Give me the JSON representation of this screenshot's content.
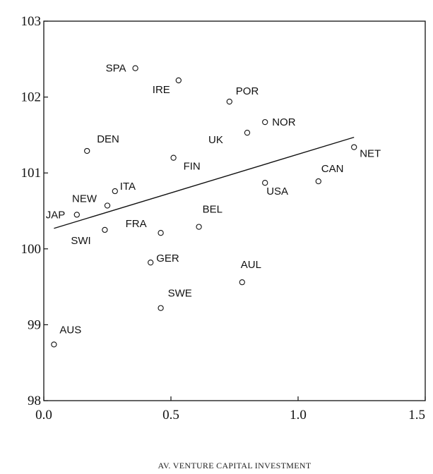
{
  "chart_data": {
    "type": "scatter",
    "title": "",
    "xlabel": "AV. VENTURE CAPITAL INVESTMENT",
    "ylabel": "",
    "xlim": [
      0.0,
      1.5
    ],
    "ylim": [
      98,
      103
    ],
    "xticks": [
      "0.0",
      "0.5",
      "1.0",
      "1.5"
    ],
    "yticks": [
      "98",
      "99",
      "100",
      "101",
      "102",
      "103"
    ],
    "grid": false,
    "points": [
      {
        "label": "SPA",
        "x": 0.36,
        "y": 102.38
      },
      {
        "label": "IRE",
        "x": 0.53,
        "y": 102.22
      },
      {
        "label": "POR",
        "x": 0.73,
        "y": 101.94
      },
      {
        "label": "NOR",
        "x": 0.87,
        "y": 101.67
      },
      {
        "label": "UK",
        "x": 0.8,
        "y": 101.53
      },
      {
        "label": "DEN",
        "x": 0.17,
        "y": 101.29
      },
      {
        "label": "NET",
        "x": 1.22,
        "y": 101.34
      },
      {
        "label": "FIN",
        "x": 0.51,
        "y": 101.2
      },
      {
        "label": "CAN",
        "x": 1.08,
        "y": 100.89
      },
      {
        "label": "USA",
        "x": 0.87,
        "y": 100.87
      },
      {
        "label": "ITA",
        "x": 0.28,
        "y": 100.76
      },
      {
        "label": "NEW",
        "x": 0.25,
        "y": 100.57
      },
      {
        "label": "JAP",
        "x": 0.13,
        "y": 100.45
      },
      {
        "label": "BEL",
        "x": 0.61,
        "y": 100.29
      },
      {
        "label": "SWI",
        "x": 0.24,
        "y": 100.25
      },
      {
        "label": "FRA",
        "x": 0.46,
        "y": 100.21
      },
      {
        "label": "GER",
        "x": 0.42,
        "y": 99.82
      },
      {
        "label": "AUL",
        "x": 0.78,
        "y": 99.56
      },
      {
        "label": "SWE",
        "x": 0.46,
        "y": 99.22
      },
      {
        "label": "AUS",
        "x": 0.04,
        "y": 98.74
      }
    ],
    "fit_line": {
      "x": [
        0.04,
        1.22
      ],
      "y": [
        100.27,
        101.47
      ]
    }
  }
}
